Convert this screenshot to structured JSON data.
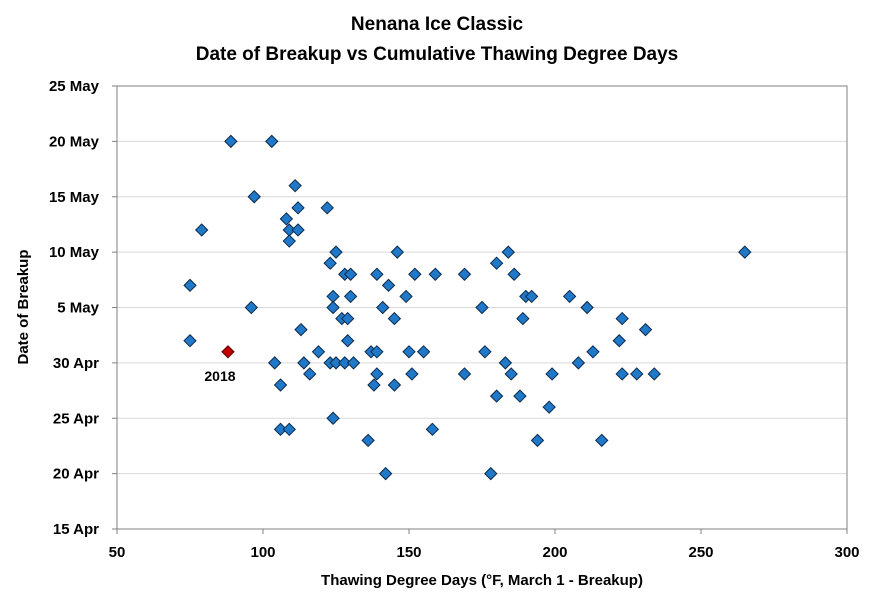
{
  "chart_data": {
    "type": "scatter",
    "title": [
      "Nenana Ice Classic",
      "Date of Breakup vs Cumulative Thawing Degree Days"
    ],
    "xlabel": "Thawing Degree Days (°F, March 1 - Breakup)",
    "ylabel": "Date of Breakup",
    "xlim": [
      50,
      300
    ],
    "ylim": [
      "15 Apr",
      "25 May"
    ],
    "x_ticks": [
      "50",
      "100",
      "150",
      "200",
      "250",
      "300"
    ],
    "y_ticks": [
      "15 Apr",
      "20 Apr",
      "25 Apr",
      "30 Apr",
      "5 May",
      "10 May",
      "15 May",
      "20 May",
      "25 May"
    ],
    "grid": "horizontal",
    "colors": {
      "series": "#1f78c8",
      "series_edge": "#0d2a4a",
      "highlight": "#c00000",
      "highlight_edge": "#5a0000",
      "grid": "#d9d9d9"
    },
    "series": [
      {
        "points": [
          {
            "x": 89,
            "y": "20 May"
          },
          {
            "x": 103,
            "y": "20 May"
          },
          {
            "x": 111,
            "y": "16 May"
          },
          {
            "x": 97,
            "y": "15 May"
          },
          {
            "x": 112,
            "y": "14 May"
          },
          {
            "x": 122,
            "y": "14 May"
          },
          {
            "x": 108,
            "y": "13 May"
          },
          {
            "x": 79,
            "y": "12 May"
          },
          {
            "x": 109,
            "y": "12 May"
          },
          {
            "x": 112,
            "y": "12 May"
          },
          {
            "x": 109,
            "y": "11 May"
          },
          {
            "x": 125,
            "y": "10 May"
          },
          {
            "x": 146,
            "y": "10 May"
          },
          {
            "x": 184,
            "y": "10 May"
          },
          {
            "x": 265,
            "y": "10 May"
          },
          {
            "x": 123,
            "y": "9 May"
          },
          {
            "x": 180,
            "y": "9 May"
          },
          {
            "x": 128,
            "y": "8 May"
          },
          {
            "x": 130,
            "y": "8 May"
          },
          {
            "x": 139,
            "y": "8 May"
          },
          {
            "x": 152,
            "y": "8 May"
          },
          {
            "x": 159,
            "y": "8 May"
          },
          {
            "x": 169,
            "y": "8 May"
          },
          {
            "x": 186,
            "y": "8 May"
          },
          {
            "x": 75,
            "y": "7 May"
          },
          {
            "x": 143,
            "y": "7 May"
          },
          {
            "x": 124,
            "y": "6 May"
          },
          {
            "x": 130,
            "y": "6 May"
          },
          {
            "x": 149,
            "y": "6 May"
          },
          {
            "x": 190,
            "y": "6 May"
          },
          {
            "x": 192,
            "y": "6 May"
          },
          {
            "x": 205,
            "y": "6 May"
          },
          {
            "x": 96,
            "y": "5 May"
          },
          {
            "x": 124,
            "y": "5 May"
          },
          {
            "x": 141,
            "y": "5 May"
          },
          {
            "x": 175,
            "y": "5 May"
          },
          {
            "x": 211,
            "y": "5 May"
          },
          {
            "x": 127,
            "y": "4 May"
          },
          {
            "x": 129,
            "y": "4 May"
          },
          {
            "x": 145,
            "y": "4 May"
          },
          {
            "x": 189,
            "y": "4 May"
          },
          {
            "x": 223,
            "y": "4 May"
          },
          {
            "x": 113,
            "y": "3 May"
          },
          {
            "x": 231,
            "y": "3 May"
          },
          {
            "x": 75,
            "y": "2 May"
          },
          {
            "x": 129,
            "y": "2 May"
          },
          {
            "x": 222,
            "y": "2 May"
          },
          {
            "x": 119,
            "y": "1 May"
          },
          {
            "x": 137,
            "y": "1 May"
          },
          {
            "x": 139,
            "y": "1 May"
          },
          {
            "x": 150,
            "y": "1 May"
          },
          {
            "x": 155,
            "y": "1 May"
          },
          {
            "x": 176,
            "y": "1 May"
          },
          {
            "x": 213,
            "y": "1 May"
          },
          {
            "x": 104,
            "y": "30 Apr"
          },
          {
            "x": 114,
            "y": "30 Apr"
          },
          {
            "x": 123,
            "y": "30 Apr"
          },
          {
            "x": 125,
            "y": "30 Apr"
          },
          {
            "x": 128,
            "y": "30 Apr"
          },
          {
            "x": 131,
            "y": "30 Apr"
          },
          {
            "x": 183,
            "y": "30 Apr"
          },
          {
            "x": 208,
            "y": "30 Apr"
          },
          {
            "x": 116,
            "y": "29 Apr"
          },
          {
            "x": 139,
            "y": "29 Apr"
          },
          {
            "x": 151,
            "y": "29 Apr"
          },
          {
            "x": 169,
            "y": "29 Apr"
          },
          {
            "x": 185,
            "y": "29 Apr"
          },
          {
            "x": 199,
            "y": "29 Apr"
          },
          {
            "x": 223,
            "y": "29 Apr"
          },
          {
            "x": 228,
            "y": "29 Apr"
          },
          {
            "x": 234,
            "y": "29 Apr"
          },
          {
            "x": 106,
            "y": "28 Apr"
          },
          {
            "x": 138,
            "y": "28 Apr"
          },
          {
            "x": 145,
            "y": "28 Apr"
          },
          {
            "x": 180,
            "y": "27 Apr"
          },
          {
            "x": 188,
            "y": "27 Apr"
          },
          {
            "x": 198,
            "y": "26 Apr"
          },
          {
            "x": 124,
            "y": "25 Apr"
          },
          {
            "x": 106,
            "y": "24 Apr"
          },
          {
            "x": 109,
            "y": "24 Apr"
          },
          {
            "x": 158,
            "y": "24 Apr"
          },
          {
            "x": 136,
            "y": "23 Apr"
          },
          {
            "x": 194,
            "y": "23 Apr"
          },
          {
            "x": 216,
            "y": "23 Apr"
          },
          {
            "x": 142,
            "y": "20 Apr"
          },
          {
            "x": 178,
            "y": "20 Apr"
          }
        ]
      }
    ],
    "highlight": {
      "label": "2018",
      "x": 88,
      "y": "1 May"
    }
  }
}
